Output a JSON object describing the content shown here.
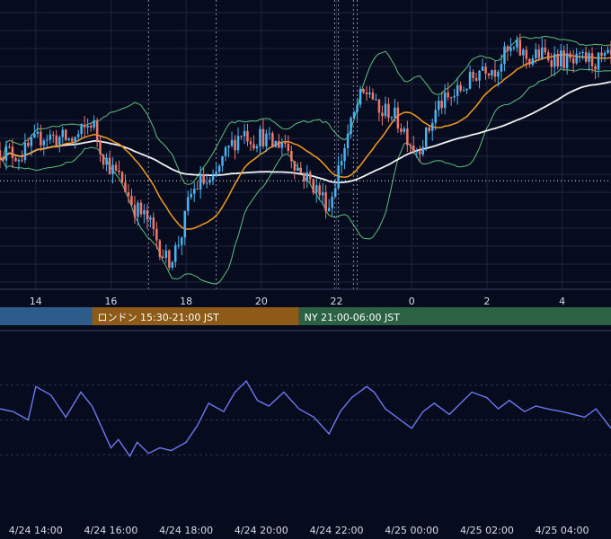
{
  "chart_data": [
    {
      "type": "candlestick",
      "x_tick_labels": [
        "14",
        "16",
        "18",
        "20",
        "22",
        "0",
        "2",
        "4"
      ],
      "x_tick_hours": [
        14,
        16,
        18,
        20,
        22,
        24,
        26,
        28
      ],
      "x_range_hours": [
        13.05,
        29.3
      ],
      "y_range": [
        0,
        100
      ],
      "grid": true,
      "candle_step_minutes": 5,
      "candles_close_path": [
        [
          13.05,
          52
        ],
        [
          13.6,
          50
        ],
        [
          13.9,
          54
        ],
        [
          14.2,
          58
        ],
        [
          14.5,
          57
        ],
        [
          15.0,
          56
        ],
        [
          15.3,
          60
        ],
        [
          15.5,
          64
        ],
        [
          15.65,
          56
        ],
        [
          15.8,
          50
        ],
        [
          16.05,
          44
        ],
        [
          16.3,
          40
        ],
        [
          16.6,
          30
        ],
        [
          17.0,
          24
        ],
        [
          17.3,
          14
        ],
        [
          17.5,
          8
        ],
        [
          17.7,
          12
        ],
        [
          17.9,
          20
        ],
        [
          18.1,
          34
        ],
        [
          18.4,
          40
        ],
        [
          18.7,
          38
        ],
        [
          18.9,
          46
        ],
        [
          19.2,
          54
        ],
        [
          19.5,
          60
        ],
        [
          19.8,
          56
        ],
        [
          20.0,
          58
        ],
        [
          20.3,
          54
        ],
        [
          20.6,
          56
        ],
        [
          20.8,
          50
        ],
        [
          21.0,
          44
        ],
        [
          21.3,
          40
        ],
        [
          21.6,
          34
        ],
        [
          21.8,
          30
        ],
        [
          22.0,
          42
        ],
        [
          22.3,
          58
        ],
        [
          22.6,
          72
        ],
        [
          22.9,
          76
        ],
        [
          23.1,
          66
        ],
        [
          23.4,
          68
        ],
        [
          23.8,
          60
        ],
        [
          24.1,
          52
        ],
        [
          24.4,
          58
        ],
        [
          24.7,
          70
        ],
        [
          25.0,
          72
        ],
        [
          25.3,
          76
        ],
        [
          25.6,
          80
        ],
        [
          25.9,
          86
        ],
        [
          26.2,
          84
        ],
        [
          26.5,
          90
        ],
        [
          26.8,
          92
        ],
        [
          27.1,
          88
        ],
        [
          27.4,
          90
        ],
        [
          27.7,
          89
        ],
        [
          28.0,
          88
        ],
        [
          28.3,
          86
        ],
        [
          28.6,
          88
        ],
        [
          28.9,
          87
        ],
        [
          29.3,
          88
        ]
      ],
      "overlays": [
        {
          "kind": "moving-average-short",
          "color": "#f39c1f"
        },
        {
          "kind": "moving-average-long",
          "color": "#f2f2f2"
        },
        {
          "kind": "bollinger-bands",
          "color": "#5fbf7f"
        }
      ],
      "reference_line_y": 40,
      "colors": {
        "bull": "#4bb3ef",
        "bear": "#f0776c",
        "grid": "#1e2540"
      }
    },
    {
      "type": "band",
      "segments": [
        {
          "label": "",
          "start_hour": 13.05,
          "end_hour": 15.5,
          "color": "#2d5b8a"
        },
        {
          "label": "ロンドン 15:30-21:00 JST",
          "start_hour": 15.5,
          "end_hour": 21.0,
          "color": "#8d5a17"
        },
        {
          "label": "NY 21:00-06:00 JST",
          "start_hour": 21.0,
          "end_hour": 29.3,
          "color": "#2a6243"
        }
      ]
    },
    {
      "type": "line",
      "x_tick_labels": [
        "4/24 14:00",
        "4/24 16:00",
        "4/24 18:00",
        "4/24 20:00",
        "4/24 22:00",
        "4/25 00:00",
        "4/25 02:00",
        "4/25 04:00"
      ],
      "x_tick_hours": [
        14,
        16,
        18,
        20,
        22,
        24,
        26,
        28
      ],
      "y_range": [
        0,
        100
      ],
      "gridlines_y": [
        25,
        50,
        75
      ],
      "color": "#6b78f0",
      "x": [
        13.05,
        13.4,
        13.8,
        14.0,
        14.4,
        14.8,
        15.2,
        15.5,
        15.8,
        16.0,
        16.2,
        16.5,
        16.7,
        17.0,
        17.3,
        17.6,
        18.0,
        18.3,
        18.6,
        19.0,
        19.3,
        19.6,
        19.9,
        20.2,
        20.6,
        21.0,
        21.4,
        21.8,
        22.1,
        22.4,
        22.8,
        23.0,
        23.3,
        23.6,
        24.0,
        24.3,
        24.6,
        25.0,
        25.3,
        25.6,
        26.0,
        26.3,
        26.6,
        27.0,
        27.3,
        27.6,
        28.0,
        28.3,
        28.6,
        28.9,
        29.3
      ],
      "values": [
        58,
        56,
        50,
        74,
        68,
        52,
        70,
        60,
        42,
        30,
        36,
        24,
        34,
        26,
        30,
        28,
        34,
        46,
        62,
        56,
        70,
        78,
        64,
        60,
        70,
        58,
        52,
        40,
        56,
        66,
        74,
        70,
        58,
        52,
        44,
        56,
        62,
        54,
        62,
        70,
        66,
        58,
        64,
        56,
        60,
        58,
        56,
        54,
        52,
        58,
        44
      ]
    }
  ]
}
